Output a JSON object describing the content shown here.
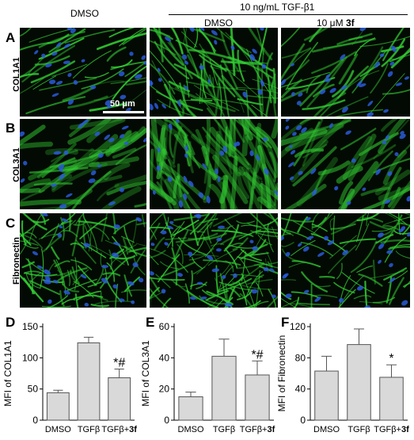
{
  "header": {
    "treatment": "10 ng/mL TGF-β1",
    "col1": "DMSO",
    "col2": "DMSO",
    "col3_prefix": "10 μM ",
    "col3_bold": "3f"
  },
  "panels": {
    "A": "A",
    "B": "B",
    "C": "C",
    "D": "D",
    "E": "E",
    "F": "F"
  },
  "rows": [
    "COL1A1",
    "COL3A1",
    "Fibronectin"
  ],
  "scale_bar_label": "50 μm",
  "colors": {
    "fiber_green": "#33cc33",
    "nuclei_blue": "#2a5ad8",
    "bar_fill": "#d9d9d9",
    "bar_stroke": "#555555"
  },
  "chart_data": [
    {
      "type": "bar",
      "panel": "D",
      "ylabel": "MFI of COL1A1",
      "categories": [
        "DMSO",
        "TGFβ",
        "TGFβ+3f"
      ],
      "values": [
        44,
        124,
        68
      ],
      "errors": [
        4,
        9,
        14
      ],
      "annotations": [
        "",
        "",
        "*#"
      ],
      "ylim": [
        0,
        150
      ],
      "yticks": [
        0,
        50,
        100,
        150
      ]
    },
    {
      "type": "bar",
      "panel": "E",
      "ylabel": "MFI of COL3A1",
      "categories": [
        "DMSO",
        "TGFβ",
        "TGFβ+3f"
      ],
      "values": [
        15,
        41,
        29
      ],
      "errors": [
        3,
        11,
        9
      ],
      "annotations": [
        "",
        "",
        "*#"
      ],
      "ylim": [
        0,
        60
      ],
      "yticks": [
        0,
        20,
        40,
        60
      ]
    },
    {
      "type": "bar",
      "panel": "F",
      "ylabel": "MFI of Fibronectin",
      "categories": [
        "DMSO",
        "TGFβ",
        "TGFβ+3f"
      ],
      "values": [
        63,
        97,
        55
      ],
      "errors": [
        19,
        20,
        16
      ],
      "annotations": [
        "",
        "",
        "*"
      ],
      "ylim": [
        0,
        120
      ],
      "yticks": [
        0,
        40,
        80,
        120
      ]
    }
  ]
}
